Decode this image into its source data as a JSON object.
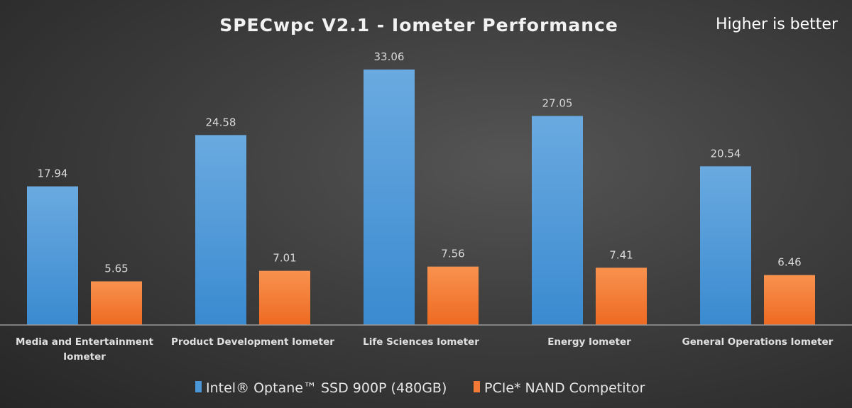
{
  "chart_data": {
    "type": "bar",
    "title": "SPECwpc V2.1 - Iometer Performance",
    "annotation": "Higher is better",
    "xlabel": "",
    "ylabel": "",
    "ylim": [
      0,
      33.06
    ],
    "grid": false,
    "legend_position": "bottom",
    "categories": [
      [
        "Media and Entertainment",
        "Iometer"
      ],
      [
        "Product Development Iometer"
      ],
      [
        "Life Sciences Iometer"
      ],
      [
        "Energy Iometer"
      ],
      [
        "General Operations Iometer"
      ]
    ],
    "series": [
      {
        "name": "Intel® Optane™ SSD 900P (480GB)",
        "color": "#4a96d6",
        "values": [
          17.94,
          24.58,
          33.06,
          27.05,
          20.54
        ],
        "labels": [
          "17.94",
          "24.58",
          "33.06",
          "27.05",
          "20.54"
        ]
      },
      {
        "name": "PCIe* NAND Competitor",
        "color": "#f27a36",
        "values": [
          5.65,
          7.01,
          7.56,
          7.41,
          6.46
        ],
        "labels": [
          "5.65",
          "7.01",
          "7.56",
          "7.41",
          "6.46"
        ]
      }
    ]
  }
}
